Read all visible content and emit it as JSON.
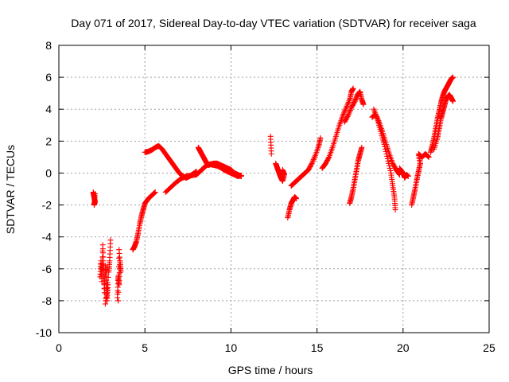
{
  "chart_data": {
    "type": "scatter",
    "title": "Day 071 of 2017, Sidereal Day-to-day VTEC variation (SDTVAR) for receiver saga",
    "xlabel": "GPS time / hours",
    "ylabel": "SDTVAR / TECUs",
    "xlim": [
      0,
      25
    ],
    "ylim": [
      -10,
      8
    ],
    "xticks": [
      0,
      5,
      10,
      15,
      20,
      25
    ],
    "yticks": [
      -10,
      -8,
      -6,
      -4,
      -2,
      0,
      2,
      4,
      6,
      8
    ],
    "grid": true,
    "marker": "+",
    "color": "#ff0000",
    "segments": [
      {
        "name": "seg-a1",
        "points": [
          [
            2.0,
            -1.2
          ],
          [
            2.05,
            -1.5
          ],
          [
            2.1,
            -1.8
          ],
          [
            2.05,
            -2.0
          ],
          [
            2.1,
            -1.3
          ]
        ]
      },
      {
        "name": "seg-a2",
        "points": [
          [
            2.4,
            -6.5
          ],
          [
            2.45,
            -5.5
          ],
          [
            2.5,
            -6.8
          ],
          [
            2.55,
            -4.5
          ],
          [
            2.6,
            -6.0
          ],
          [
            2.65,
            -7.5
          ],
          [
            2.7,
            -5.8
          ],
          [
            2.75,
            -6.5
          ],
          [
            2.8,
            -8.0
          ],
          [
            2.85,
            -7.0
          ],
          [
            2.7,
            -8.2
          ],
          [
            2.9,
            -6.2
          ],
          [
            2.95,
            -5.5
          ],
          [
            3.0,
            -4.2
          ]
        ]
      },
      {
        "name": "seg-a3",
        "points": [
          [
            3.4,
            -7.8
          ],
          [
            3.45,
            -6.5
          ],
          [
            3.5,
            -7.0
          ],
          [
            3.55,
            -5.5
          ],
          [
            3.6,
            -6.2
          ],
          [
            3.5,
            -4.8
          ],
          [
            3.45,
            -8.0
          ]
        ]
      },
      {
        "name": "seg-b",
        "points": [
          [
            4.3,
            -4.8
          ],
          [
            4.4,
            -4.6
          ],
          [
            4.5,
            -4.3
          ],
          [
            4.6,
            -3.8
          ],
          [
            4.7,
            -3.2
          ],
          [
            4.8,
            -2.7
          ],
          [
            4.9,
            -2.3
          ],
          [
            5.0,
            -1.9
          ],
          [
            5.2,
            -1.6
          ],
          [
            5.4,
            -1.4
          ],
          [
            5.6,
            -1.2
          ]
        ]
      },
      {
        "name": "seg-c",
        "points": [
          [
            5.0,
            1.3
          ],
          [
            5.2,
            1.35
          ],
          [
            5.4,
            1.45
          ],
          [
            5.6,
            1.6
          ],
          [
            5.8,
            1.7
          ],
          [
            6.0,
            1.5
          ],
          [
            6.2,
            1.2
          ],
          [
            6.4,
            0.9
          ],
          [
            6.6,
            0.6
          ],
          [
            6.8,
            0.3
          ],
          [
            7.0,
            0.0
          ],
          [
            7.2,
            -0.2
          ],
          [
            7.4,
            -0.3
          ],
          [
            7.6,
            -0.2
          ],
          [
            7.8,
            -0.05
          ],
          [
            8.0,
            0.1
          ]
        ]
      },
      {
        "name": "seg-d",
        "points": [
          [
            6.2,
            -1.2
          ],
          [
            6.5,
            -0.9
          ],
          [
            6.8,
            -0.6
          ],
          [
            7.1,
            -0.35
          ],
          [
            7.4,
            -0.2
          ],
          [
            7.7,
            -0.15
          ],
          [
            8.0,
            -0.1
          ],
          [
            8.2,
            0.1
          ],
          [
            8.4,
            0.3
          ],
          [
            8.6,
            0.5
          ],
          [
            8.8,
            0.55
          ],
          [
            9.0,
            0.5
          ],
          [
            9.2,
            0.45
          ],
          [
            9.4,
            0.35
          ],
          [
            9.6,
            0.2
          ],
          [
            9.8,
            0.1
          ],
          [
            10.0,
            0.0
          ],
          [
            10.2,
            -0.1
          ],
          [
            10.4,
            -0.2
          ],
          [
            10.6,
            -0.15
          ]
        ]
      },
      {
        "name": "seg-e",
        "points": [
          [
            8.1,
            1.6
          ],
          [
            8.2,
            1.4
          ],
          [
            8.3,
            1.2
          ],
          [
            8.4,
            1.0
          ],
          [
            8.5,
            0.8
          ],
          [
            8.6,
            0.6
          ],
          [
            8.7,
            0.5
          ],
          [
            8.8,
            0.55
          ],
          [
            9.0,
            0.6
          ],
          [
            9.2,
            0.6
          ],
          [
            9.4,
            0.5
          ],
          [
            9.6,
            0.4
          ],
          [
            9.8,
            0.3
          ],
          [
            10.0,
            0.2
          ],
          [
            10.2,
            0.0
          ],
          [
            10.4,
            -0.1
          ],
          [
            10.6,
            -0.2
          ]
        ]
      },
      {
        "name": "seg-f",
        "points": [
          [
            12.3,
            2.3
          ],
          [
            12.35,
            1.2
          ]
        ]
      },
      {
        "name": "seg-g",
        "points": [
          [
            12.6,
            0.6
          ],
          [
            12.7,
            0.3
          ],
          [
            12.8,
            0.0
          ],
          [
            12.9,
            -0.3
          ],
          [
            13.0,
            -0.5
          ],
          [
            13.1,
            -0.1
          ],
          [
            13.0,
            0.2
          ]
        ]
      },
      {
        "name": "seg-h",
        "points": [
          [
            13.3,
            -2.8
          ],
          [
            13.4,
            -2.3
          ],
          [
            13.5,
            -1.9
          ],
          [
            13.6,
            -1.7
          ],
          [
            13.7,
            -1.5
          ],
          [
            13.8,
            -1.6
          ]
        ]
      },
      {
        "name": "seg-i",
        "points": [
          [
            13.5,
            -0.8
          ],
          [
            13.7,
            -0.6
          ],
          [
            13.9,
            -0.4
          ],
          [
            14.1,
            -0.2
          ],
          [
            14.3,
            0.0
          ],
          [
            14.5,
            0.2
          ],
          [
            14.7,
            0.6
          ],
          [
            14.9,
            1.1
          ],
          [
            15.1,
            1.7
          ],
          [
            15.2,
            2.2
          ]
        ]
      },
      {
        "name": "seg-j",
        "points": [
          [
            15.3,
            0.3
          ],
          [
            15.5,
            0.6
          ],
          [
            15.7,
            1.0
          ],
          [
            15.9,
            1.6
          ],
          [
            16.1,
            2.3
          ],
          [
            16.3,
            3.0
          ],
          [
            16.5,
            3.6
          ],
          [
            16.7,
            4.1
          ],
          [
            16.9,
            4.6
          ],
          [
            17.0,
            5.1
          ],
          [
            17.1,
            5.3
          ]
        ]
      },
      {
        "name": "seg-k",
        "points": [
          [
            16.6,
            3.2
          ],
          [
            16.8,
            3.6
          ],
          [
            17.0,
            4.1
          ],
          [
            17.2,
            4.5
          ],
          [
            17.35,
            4.9
          ],
          [
            17.5,
            5.1
          ],
          [
            17.6,
            4.6
          ],
          [
            17.7,
            4.3
          ]
        ]
      },
      {
        "name": "seg-l",
        "points": [
          [
            16.9,
            -1.9
          ],
          [
            17.0,
            -1.5
          ],
          [
            17.1,
            -1.0
          ],
          [
            17.2,
            -0.4
          ],
          [
            17.3,
            0.2
          ],
          [
            17.4,
            0.8
          ],
          [
            17.5,
            1.2
          ],
          [
            17.6,
            1.6
          ]
        ]
      },
      {
        "name": "seg-m",
        "points": [
          [
            18.3,
            4.0
          ],
          [
            18.5,
            3.4
          ],
          [
            18.7,
            2.6
          ],
          [
            18.9,
            1.8
          ],
          [
            19.1,
            0.9
          ],
          [
            19.3,
            0.0
          ],
          [
            19.4,
            -0.8
          ],
          [
            19.5,
            -1.5
          ],
          [
            19.55,
            -2.3
          ]
        ]
      },
      {
        "name": "seg-n",
        "points": [
          [
            18.2,
            3.5
          ],
          [
            18.4,
            3.7
          ],
          [
            18.6,
            3.2
          ],
          [
            18.8,
            2.6
          ],
          [
            19.0,
            1.9
          ],
          [
            19.2,
            1.2
          ],
          [
            19.4,
            0.6
          ],
          [
            19.6,
            0.2
          ],
          [
            19.8,
            -0.1
          ]
        ]
      },
      {
        "name": "seg-o",
        "points": [
          [
            19.8,
            0.3
          ],
          [
            20.0,
            0.0
          ],
          [
            20.1,
            -0.3
          ],
          [
            20.2,
            -0.1
          ],
          [
            20.3,
            -0.2
          ]
        ]
      },
      {
        "name": "seg-p",
        "points": [
          [
            20.5,
            -2.0
          ],
          [
            20.6,
            -1.5
          ],
          [
            20.7,
            -1.0
          ],
          [
            20.8,
            -0.4
          ],
          [
            20.9,
            0.1
          ],
          [
            21.0,
            0.6
          ],
          [
            20.9,
            1.2
          ],
          [
            21.1,
            1.0
          ],
          [
            21.3,
            1.2
          ],
          [
            21.5,
            1.0
          ]
        ]
      },
      {
        "name": "seg-q",
        "points": [
          [
            21.6,
            1.3
          ],
          [
            21.7,
            1.7
          ],
          [
            21.8,
            2.2
          ],
          [
            21.9,
            2.8
          ],
          [
            22.0,
            3.4
          ],
          [
            22.1,
            3.9
          ],
          [
            22.2,
            4.4
          ],
          [
            22.3,
            4.8
          ],
          [
            22.4,
            5.1
          ],
          [
            22.5,
            5.3
          ],
          [
            22.6,
            5.5
          ],
          [
            22.7,
            5.7
          ],
          [
            22.8,
            5.9
          ],
          [
            22.9,
            6.0
          ]
        ]
      },
      {
        "name": "seg-r",
        "points": [
          [
            21.8,
            1.5
          ],
          [
            22.0,
            2.2
          ],
          [
            22.1,
            2.8
          ],
          [
            22.2,
            3.4
          ],
          [
            22.3,
            3.8
          ],
          [
            22.4,
            4.2
          ],
          [
            22.5,
            4.6
          ],
          [
            22.6,
            4.8
          ],
          [
            22.7,
            4.9
          ],
          [
            22.8,
            4.7
          ],
          [
            22.9,
            4.5
          ]
        ]
      }
    ]
  }
}
